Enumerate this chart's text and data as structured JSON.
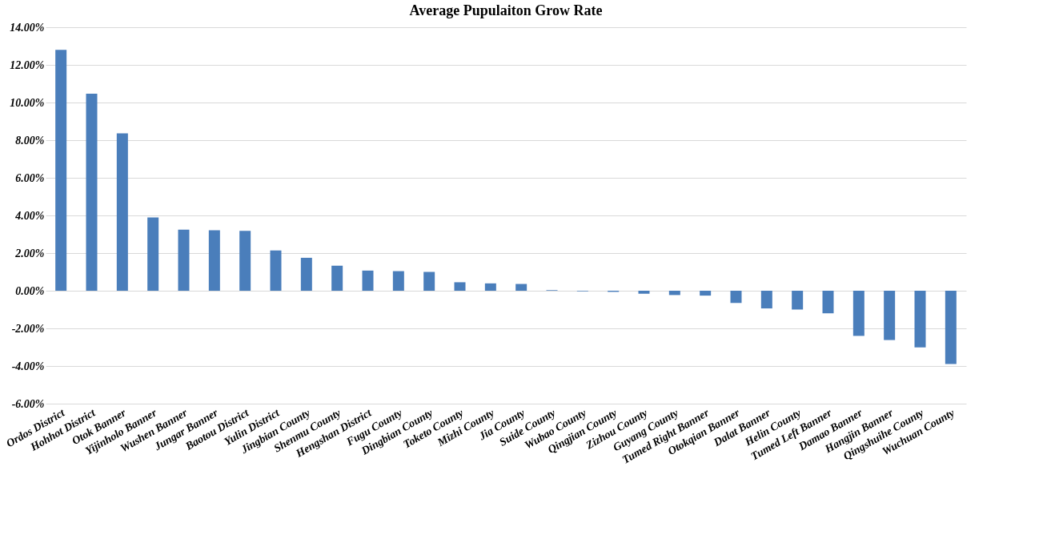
{
  "chart_data": {
    "type": "bar",
    "title": "Average Pupulaiton Grow Rate",
    "categories": [
      "Ordos District",
      "Hohhot District",
      "Otok Banner",
      "Yijinholo Banner",
      "Wushen Banner",
      "Jungar Banner",
      "Baotou District",
      "Yulin District",
      "Jingbian County",
      "Shenmu County",
      "Hengshan District",
      "Fugu County",
      "Dingbian County",
      "Toketo County",
      "Mizhi County",
      "Jia County",
      "Suide County",
      "Wubao County",
      "Qingjian County",
      "Zizhou County",
      "Guyang County",
      "Tumed Right Banner",
      "Otokqian Banner",
      "Dalat Banner",
      "Helin County",
      "Tumed Left Banner",
      "Damao Banner",
      "Hangjin Banner",
      "Qingshuihe County",
      "Wuchuan County"
    ],
    "values": [
      12.8,
      10.47,
      8.36,
      3.89,
      3.24,
      3.21,
      3.18,
      2.14,
      1.75,
      1.33,
      1.07,
      1.04,
      1.0,
      0.45,
      0.39,
      0.36,
      0.03,
      -0.03,
      -0.06,
      -0.16,
      -0.23,
      -0.26,
      -0.65,
      -0.94,
      -1.0,
      -1.2,
      -2.4,
      -2.62,
      -3.01,
      -3.89
    ],
    "color": "#4a7ebb",
    "ylim": [
      -6,
      14
    ],
    "yticks": [
      {
        "value": -6,
        "label": "-6.00%"
      },
      {
        "value": -4,
        "label": "-4.00%"
      },
      {
        "value": -2,
        "label": "-2.00%"
      },
      {
        "value": 0,
        "label": "0.00%"
      },
      {
        "value": 2,
        "label": "2.00%"
      },
      {
        "value": 4,
        "label": "4.00%"
      },
      {
        "value": 6,
        "label": "6.00%"
      },
      {
        "value": 8,
        "label": "8.00%"
      },
      {
        "value": 10,
        "label": "10.00%"
      },
      {
        "value": 12,
        "label": "12.00%"
      },
      {
        "value": 14,
        "label": "14.00%"
      }
    ],
    "grid": "y"
  }
}
